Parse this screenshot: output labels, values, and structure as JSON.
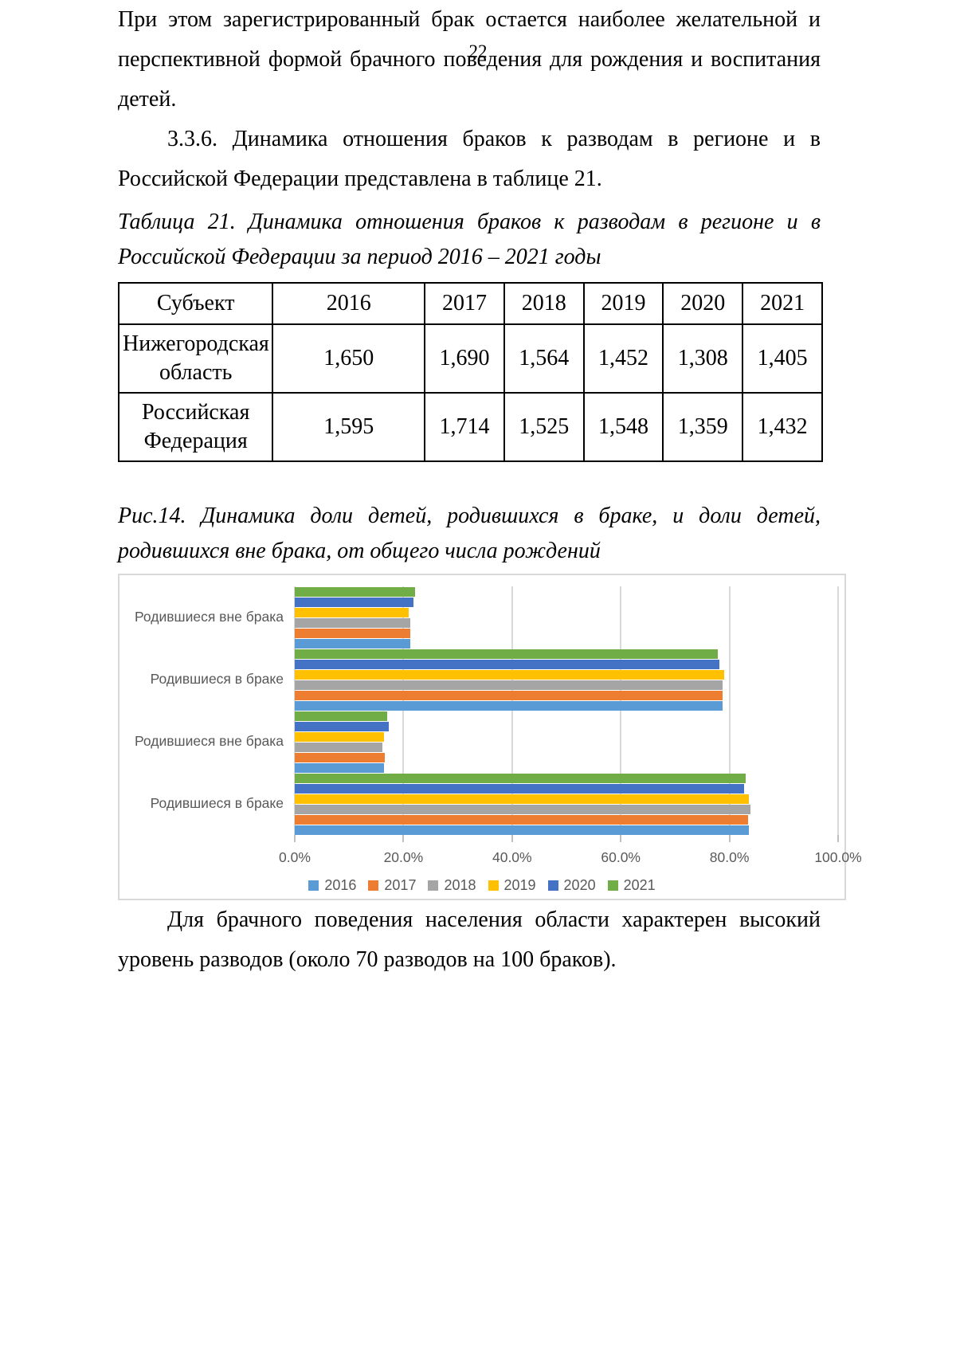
{
  "page": {
    "number": "22"
  },
  "paragraphs": {
    "p1": "При этом зарегистрированный брак остается наиболее желательной и перспективной формой брачного поведения для рождения и воспитания детей.",
    "p2": "3.3.6. Динамика отношения браков к разводам в регионе и в Российской Федерации представлена в таблице 21.",
    "p3": "Для брачного поведения населения области характерен высокий уровень разводов (около 70 разводов на 100 браков)."
  },
  "table": {
    "caption": "Таблица 21. Динамика отношения браков к разводам в регионе и в Российской Федерации за период 2016 – 2021 годы",
    "columns": [
      "Субъект",
      "2016",
      "2017",
      "2018",
      "2019",
      "2020",
      "2021"
    ],
    "rows": [
      {
        "subject": "Нижегородская область",
        "values": [
          "1,650",
          "1,690",
          "1,564",
          "1,452",
          "1,308",
          "1,405"
        ]
      },
      {
        "subject": "Российская Федерация",
        "values": [
          "1,595",
          "1,714",
          "1,525",
          "1,548",
          "1,359",
          "1,432"
        ]
      }
    ]
  },
  "figure": {
    "caption": "Рис.14. Динамика доли детей, родившихся в браке, и доли детей, родившихся вне брака, от общего числа рождений"
  },
  "chart_data": {
    "type": "bar",
    "orientation": "horizontal",
    "categories": [
      "Родившиеся вне брака",
      "Родившиеся в браке",
      "Родившиеся вне брака",
      "Родившиеся в браке"
    ],
    "series": [
      {
        "name": "2016",
        "color": "#5B9BD5",
        "values": [
          21.2,
          78.8,
          16.4,
          83.6
        ]
      },
      {
        "name": "2017",
        "color": "#ED7D31",
        "values": [
          21.2,
          78.8,
          16.6,
          83.4
        ]
      },
      {
        "name": "2018",
        "color": "#A5A5A5",
        "values": [
          21.2,
          78.8,
          16.1,
          83.9
        ]
      },
      {
        "name": "2019",
        "color": "#FFC000",
        "values": [
          20.9,
          79.1,
          16.4,
          83.6
        ]
      },
      {
        "name": "2020",
        "color": "#4472C4",
        "values": [
          21.8,
          78.2,
          17.3,
          82.7
        ]
      },
      {
        "name": "2021",
        "color": "#70AD47",
        "values": [
          22.1,
          77.9,
          17.0,
          83.0
        ]
      }
    ],
    "x_ticks": [
      "0.0%",
      "20.0%",
      "40.0%",
      "60.0%",
      "80.0%",
      "100.0%"
    ],
    "xlim": [
      0,
      100
    ],
    "grid": true,
    "legend_position": "bottom",
    "bar_order": "2021 at top of each group down to 2016 at bottom",
    "axis_text_color": "#595959",
    "gridline_color": "#d9d9d9"
  }
}
